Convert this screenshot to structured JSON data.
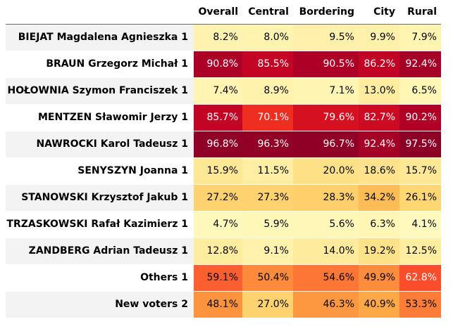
{
  "chart_data": {
    "type": "heatmap",
    "columns": [
      "Overall",
      "Central",
      "Bordering",
      "City",
      "Rural"
    ],
    "rows": [
      {
        "label": "BIEJAT Magdalena Agnieszka 1",
        "values": [
          8.2,
          8.0,
          9.5,
          9.9,
          7.9
        ]
      },
      {
        "label": "BRAUN Grzegorz Michał 1",
        "values": [
          90.8,
          85.5,
          90.5,
          86.2,
          92.4
        ]
      },
      {
        "label": "HOŁOWNIA Szymon Franciszek 1",
        "values": [
          7.4,
          8.9,
          7.1,
          13.0,
          6.5
        ]
      },
      {
        "label": "MENTZEN Sławomir Jerzy 1",
        "values": [
          85.7,
          70.1,
          79.6,
          82.7,
          90.2
        ]
      },
      {
        "label": "NAWROCKI Karol Tadeusz 1",
        "values": [
          96.8,
          96.3,
          96.7,
          92.4,
          97.5
        ]
      },
      {
        "label": "SENYSZYN Joanna 1",
        "values": [
          15.9,
          11.5,
          20.0,
          18.6,
          15.7
        ]
      },
      {
        "label": "STANOWSKI Krzysztof Jakub 1",
        "values": [
          27.2,
          27.3,
          28.3,
          34.2,
          26.1
        ]
      },
      {
        "label": "TRZASKOWSKI Rafał Kazimierz 1",
        "values": [
          4.7,
          5.9,
          5.6,
          6.3,
          4.1
        ]
      },
      {
        "label": "ZANDBERG Adrian Tadeusz 1",
        "values": [
          12.8,
          9.1,
          14.0,
          19.2,
          12.5
        ]
      },
      {
        "label": "Others 1",
        "values": [
          59.1,
          50.4,
          54.6,
          49.9,
          62.8
        ]
      },
      {
        "label": "New voters 2",
        "values": [
          48.1,
          27.0,
          46.3,
          40.9,
          53.3
        ]
      }
    ],
    "value_suffix": "%",
    "value_range": [
      0,
      100
    ],
    "colormap": {
      "name": "YlOrRd",
      "stops": [
        "#ffffcc",
        "#ffeda0",
        "#fed976",
        "#feb24c",
        "#fd8d3c",
        "#fc4e2a",
        "#e31a1c",
        "#bd0026",
        "#800026"
      ]
    },
    "text_color_dark": "#000000",
    "text_color_light": "#ffffff"
  }
}
